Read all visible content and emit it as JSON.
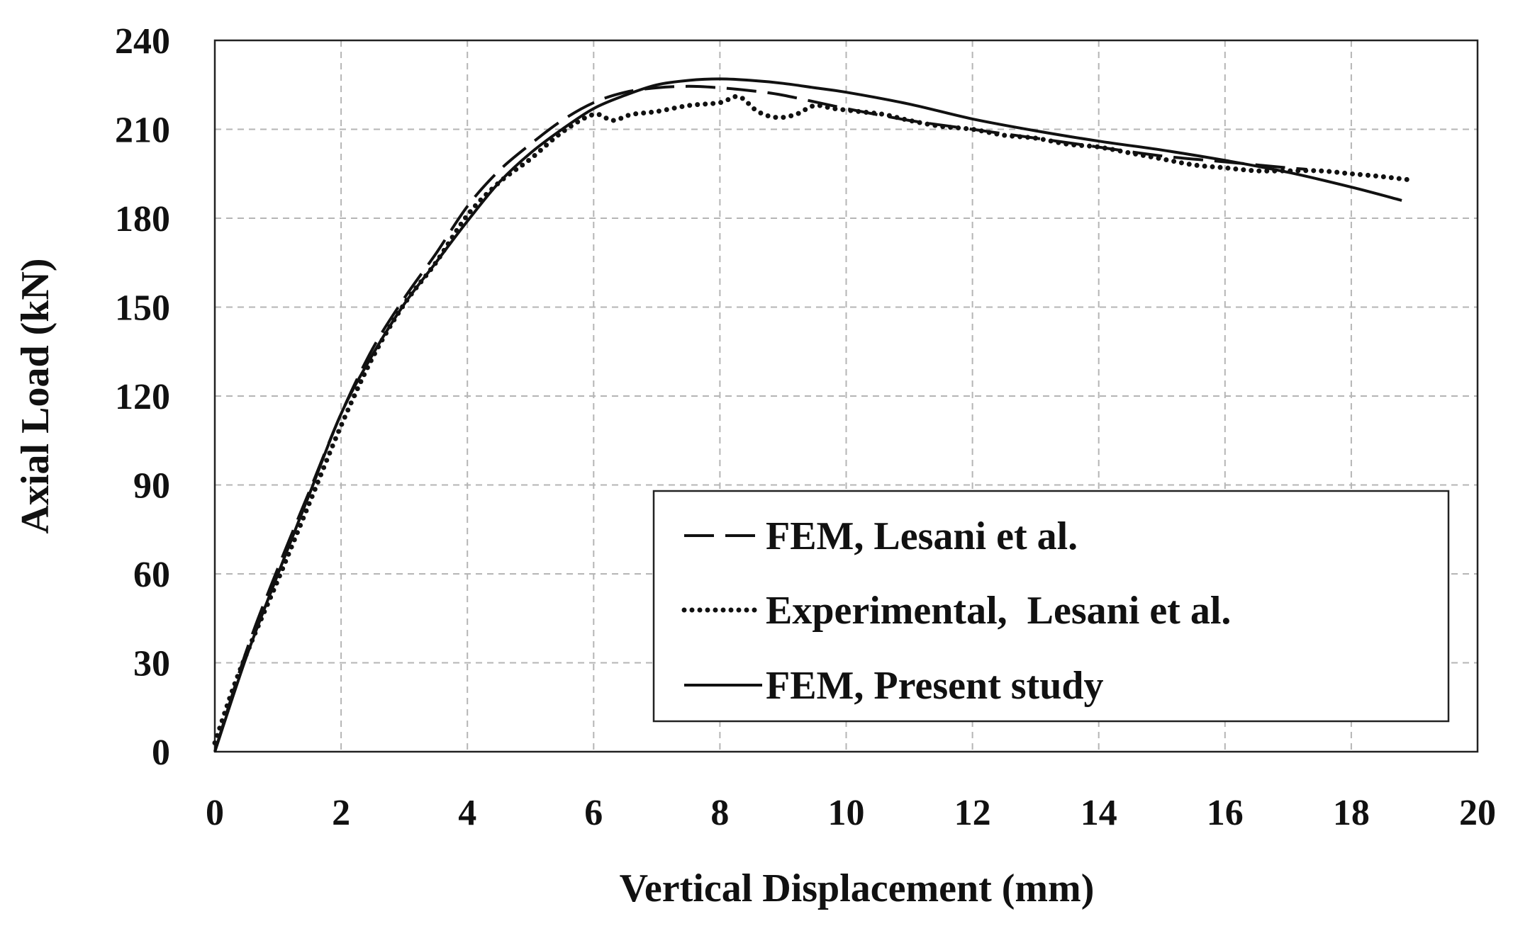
{
  "chart_data": {
    "type": "line",
    "title": "",
    "xlabel": "Vertical Displacement (mm)",
    "ylabel": "Axial Load (kN)",
    "xlim": [
      0,
      20
    ],
    "ylim": [
      0,
      240
    ],
    "xticks": [
      0,
      2,
      4,
      6,
      8,
      10,
      12,
      14,
      16,
      18,
      20
    ],
    "yticks": [
      0,
      30,
      60,
      90,
      120,
      150,
      180,
      210,
      240
    ],
    "grid": true,
    "legend_position": "bottom-right",
    "series": [
      {
        "name": "FEM, Lesani et al.",
        "style": "dashed",
        "color": "#111111",
        "x": [
          0,
          0.5,
          1,
          1.5,
          2,
          2.5,
          3,
          3.5,
          4,
          4.5,
          5,
          5.5,
          6,
          6.5,
          7,
          7.5,
          8,
          8.5,
          9,
          10,
          11,
          12,
          13,
          14,
          15,
          16,
          17,
          17.3
        ],
        "y": [
          0,
          34,
          62,
          88,
          114,
          136,
          153,
          168,
          184,
          196,
          205,
          213,
          219,
          222.5,
          224,
          224.5,
          224,
          223,
          221.5,
          217,
          213,
          210,
          207,
          204,
          201,
          199,
          197,
          196.5
        ]
      },
      {
        "name": "Experimental,  Lesani et al.",
        "style": "dotted",
        "color": "#111111",
        "x": [
          0,
          0.3,
          0.6,
          1,
          1.5,
          2,
          2.5,
          3,
          3.5,
          4,
          4.5,
          5,
          5.5,
          6,
          6.3,
          6.6,
          7,
          7.5,
          8,
          8.3,
          8.6,
          8.9,
          9.2,
          9.5,
          9.8,
          10.2,
          10.6,
          11,
          11.5,
          12,
          12.5,
          13,
          13.5,
          14,
          14.5,
          15,
          15.5,
          16,
          16.5,
          17,
          17.5,
          18,
          18.5,
          18.9
        ],
        "y": [
          3,
          22,
          38,
          58,
          84,
          110,
          133,
          151,
          165,
          181,
          192,
          200,
          209,
          215,
          213,
          215,
          216,
          218,
          219,
          221,
          216,
          214,
          215,
          218,
          217,
          216,
          215,
          213,
          211,
          210,
          208,
          207,
          205,
          204,
          202,
          200,
          198,
          197,
          196,
          196,
          196,
          195,
          194,
          193
        ]
      },
      {
        "name": "FEM, Present study",
        "style": "solid",
        "color": "#111111",
        "x": [
          0,
          0.5,
          1,
          1.5,
          2,
          2.5,
          3,
          3.5,
          4,
          4.5,
          5,
          5.5,
          6,
          6.5,
          7,
          7.5,
          8,
          8.5,
          9,
          9.5,
          10,
          11,
          12,
          13,
          14,
          15,
          16,
          17,
          18,
          18.8
        ],
        "y": [
          0,
          32,
          60,
          87,
          114,
          134,
          151,
          165,
          179,
          192,
          202,
          210,
          217,
          221.5,
          225,
          226.5,
          227,
          226.5,
          225.5,
          224,
          222.5,
          218.5,
          213.5,
          209.5,
          206,
          203,
          199.5,
          195.5,
          190.5,
          186
        ]
      }
    ]
  }
}
